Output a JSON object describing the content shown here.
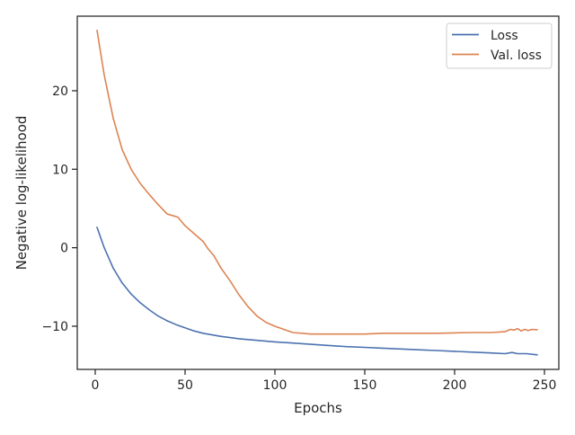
{
  "chart_data": {
    "type": "line",
    "title": "",
    "xlabel": "Epochs",
    "ylabel": "Negative log-likelihood",
    "xlim": [
      -10,
      258
    ],
    "ylim": [
      -15.5,
      29.5
    ],
    "xticks": [
      0,
      50,
      100,
      150,
      200,
      250
    ],
    "yticks": [
      -10,
      0,
      10,
      20
    ],
    "ytick_labels": [
      "−10",
      "0",
      "10",
      "20"
    ],
    "grid": false,
    "legend_position": "top-right",
    "series": [
      {
        "name": "Loss",
        "color": "#4c72b0",
        "x": [
          1,
          5,
          10,
          15,
          20,
          25,
          30,
          35,
          40,
          45,
          50,
          55,
          60,
          70,
          80,
          90,
          100,
          110,
          120,
          130,
          140,
          150,
          160,
          170,
          180,
          190,
          200,
          210,
          220,
          228,
          232,
          235,
          240,
          246
        ],
        "y": [
          2.6,
          0.0,
          -2.6,
          -4.5,
          -5.9,
          -7.0,
          -7.9,
          -8.7,
          -9.3,
          -9.8,
          -10.2,
          -10.6,
          -10.9,
          -11.3,
          -11.6,
          -11.8,
          -12.0,
          -12.15,
          -12.3,
          -12.45,
          -12.6,
          -12.7,
          -12.8,
          -12.9,
          -13.0,
          -13.1,
          -13.2,
          -13.3,
          -13.4,
          -13.5,
          -13.35,
          -13.5,
          -13.5,
          -13.65
        ]
      },
      {
        "name": "Val. loss",
        "color": "#dd8452",
        "x": [
          1,
          5,
          10,
          15,
          20,
          25,
          30,
          35,
          40,
          43,
          46,
          50,
          55,
          60,
          63,
          66,
          70,
          75,
          80,
          85,
          90,
          95,
          100,
          105,
          110,
          115,
          120,
          130,
          140,
          150,
          160,
          170,
          180,
          190,
          200,
          210,
          220,
          228,
          231,
          233,
          235,
          237,
          239,
          241,
          243,
          246
        ],
        "y": [
          27.7,
          22.0,
          16.5,
          12.5,
          10.0,
          8.2,
          6.8,
          5.5,
          4.3,
          4.1,
          3.9,
          2.8,
          1.8,
          0.8,
          -0.2,
          -1.0,
          -2.6,
          -4.2,
          -6.0,
          -7.5,
          -8.7,
          -9.5,
          -10.0,
          -10.4,
          -10.8,
          -10.9,
          -11.0,
          -11.0,
          -11.0,
          -11.0,
          -10.9,
          -10.9,
          -10.9,
          -10.9,
          -10.85,
          -10.8,
          -10.8,
          -10.7,
          -10.4,
          -10.5,
          -10.3,
          -10.6,
          -10.4,
          -10.55,
          -10.4,
          -10.45
        ]
      }
    ]
  }
}
